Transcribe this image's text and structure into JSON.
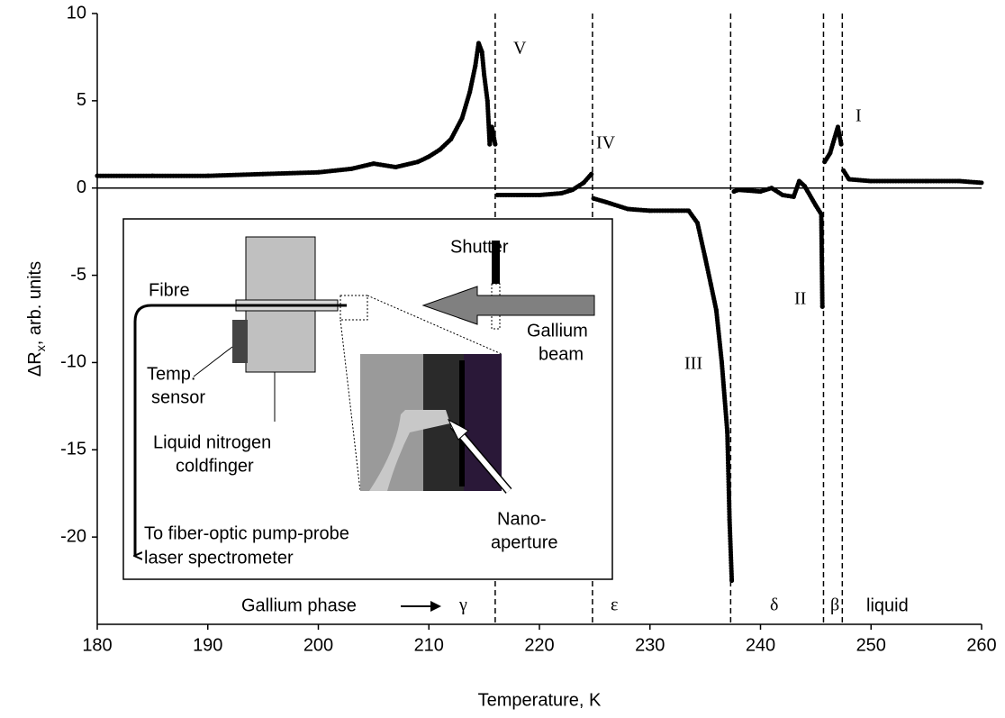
{
  "chart_data": {
    "type": "line",
    "ylabel": [
      "ΔR",
      "x",
      ", arb. units"
    ],
    "xlabel": "Temperature, K",
    "xlim": [
      180,
      260
    ],
    "ylim": [
      -25,
      10
    ],
    "xticks": [
      180,
      190,
      200,
      210,
      220,
      230,
      240,
      250,
      260
    ],
    "yticks": [
      -20,
      -15,
      -10,
      -5,
      0,
      5,
      10
    ],
    "color": "#000000",
    "x": [
      180,
      185,
      190,
      195,
      200,
      203,
      205,
      207,
      209,
      210,
      211,
      212,
      213,
      213.7,
      214.2,
      214.5,
      214.8,
      215,
      215.3,
      215.5,
      215.7,
      216,
      216.1,
      216.2,
      218,
      220,
      222,
      223,
      224,
      224.7,
      224.8,
      224.9,
      226,
      228,
      230,
      232,
      233.5,
      234.3,
      235,
      235.5,
      236,
      236.5,
      237,
      237.2,
      237.4,
      237.5,
      237.6,
      238,
      240,
      241,
      242,
      243,
      243.5,
      244,
      245,
      245.5,
      245.6,
      245.7,
      245.8,
      246.3,
      247,
      247.3,
      247.4,
      247.5,
      248,
      250,
      255,
      258,
      260
    ],
    "values": [
      0.7,
      0.7,
      0.7,
      0.8,
      0.9,
      1.1,
      1.4,
      1.2,
      1.5,
      1.8,
      2.2,
      2.8,
      4,
      5.5,
      7,
      8.3,
      7.8,
      6.5,
      5,
      2.5,
      3.5,
      2.5,
      null,
      -0.4,
      -0.4,
      -0.4,
      -0.3,
      -0.1,
      0.3,
      0.8,
      null,
      -0.6,
      -0.8,
      -1.2,
      -1.3,
      -1.3,
      -1.3,
      -2,
      -4,
      -5.5,
      -7,
      -10,
      -14,
      -19,
      -22.5,
      null,
      -0.2,
      -0.1,
      -0.2,
      0,
      -0.4,
      -0.5,
      0.4,
      0.1,
      -1,
      -1.5,
      -6.8,
      null,
      1.5,
      2,
      3.5,
      2.5,
      null,
      1,
      0.5,
      0.4,
      0.4,
      0.4,
      0.3
    ],
    "phase_boundaries": [
      216,
      224.8,
      237.3,
      245.7,
      247.4
    ],
    "transition_labels": [
      "V",
      "IV",
      "III",
      "II",
      "I"
    ],
    "phase_caption": "Gallium phase",
    "phases": [
      "γ",
      "ε",
      "δ",
      "β",
      "liquid"
    ],
    "inset": {
      "shutter": "Shutter",
      "fibre": "Fibre",
      "beam": [
        "Gallium",
        "beam"
      ],
      "sensor": [
        "Temp.",
        "sensor"
      ],
      "coldfinger": [
        "Liquid nitrogen",
        "coldfinger"
      ],
      "aperture": [
        "Nano-",
        "aperture"
      ],
      "spectrometer": [
        "To fiber-optic pump-probe",
        "laser spectrometer"
      ]
    }
  }
}
